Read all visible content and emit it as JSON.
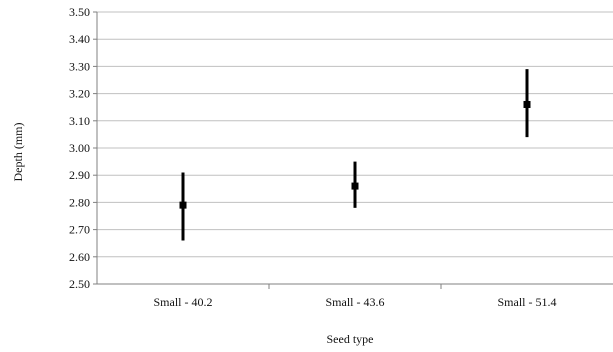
{
  "chart_data": {
    "type": "scatter",
    "xlabel": "Seed type",
    "ylabel": "Depth (mm)",
    "categories": [
      "Small - 40.2",
      "Small - 43.6",
      "Small - 51.4"
    ],
    "values": [
      2.79,
      2.86,
      3.16
    ],
    "error_low": [
      2.66,
      2.78,
      3.04
    ],
    "error_high": [
      2.91,
      2.95,
      3.29
    ],
    "ylim": [
      2.5,
      3.5
    ],
    "yticks": [
      "2.50",
      "2.60",
      "2.70",
      "2.80",
      "2.90",
      "3.00",
      "3.10",
      "3.20",
      "3.30",
      "3.40",
      "3.50"
    ],
    "grid": "horizontal",
    "legend": "none",
    "colors": {
      "marker": "#000000",
      "gridline": "#c0c0c0",
      "axis": "#808080",
      "background": "#ffffff"
    }
  }
}
